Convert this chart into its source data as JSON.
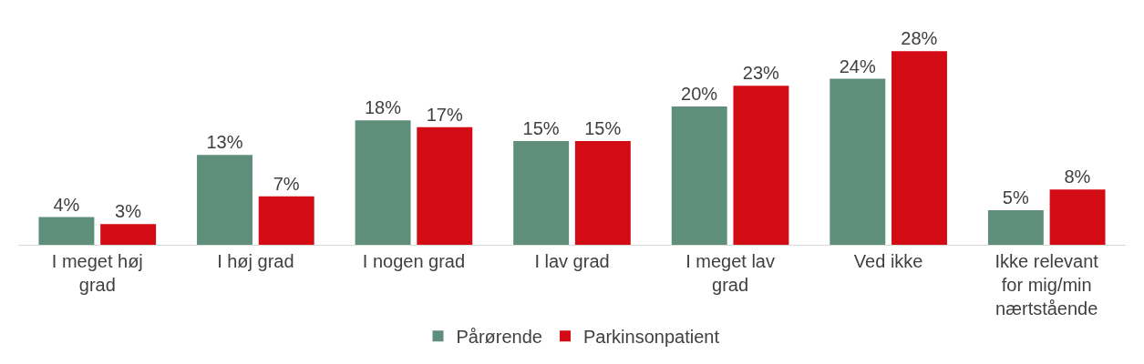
{
  "chart_data": {
    "type": "bar",
    "categories": [
      "I meget høj grad",
      "I høj grad",
      "I nogen grad",
      "I lav grad",
      "I meget lav grad",
      "Ved ikke",
      "Ikke relevant for mig/min nærtstående"
    ],
    "series": [
      {
        "name": "Pårørende",
        "color": "#5f8f7b",
        "values": [
          4,
          13,
          18,
          15,
          20,
          24,
          5
        ],
        "value_labels": [
          "4%",
          "13%",
          "18%",
          "15%",
          "20%",
          "24%",
          "5%"
        ]
      },
      {
        "name": "Parkinsonpatient",
        "color": "#d30b15",
        "values": [
          3,
          7,
          17,
          15,
          23,
          28,
          8
        ],
        "value_labels": [
          "3%",
          "7%",
          "17%",
          "15%",
          "23%",
          "28%",
          "8%"
        ]
      }
    ],
    "legend": "bottom"
  }
}
